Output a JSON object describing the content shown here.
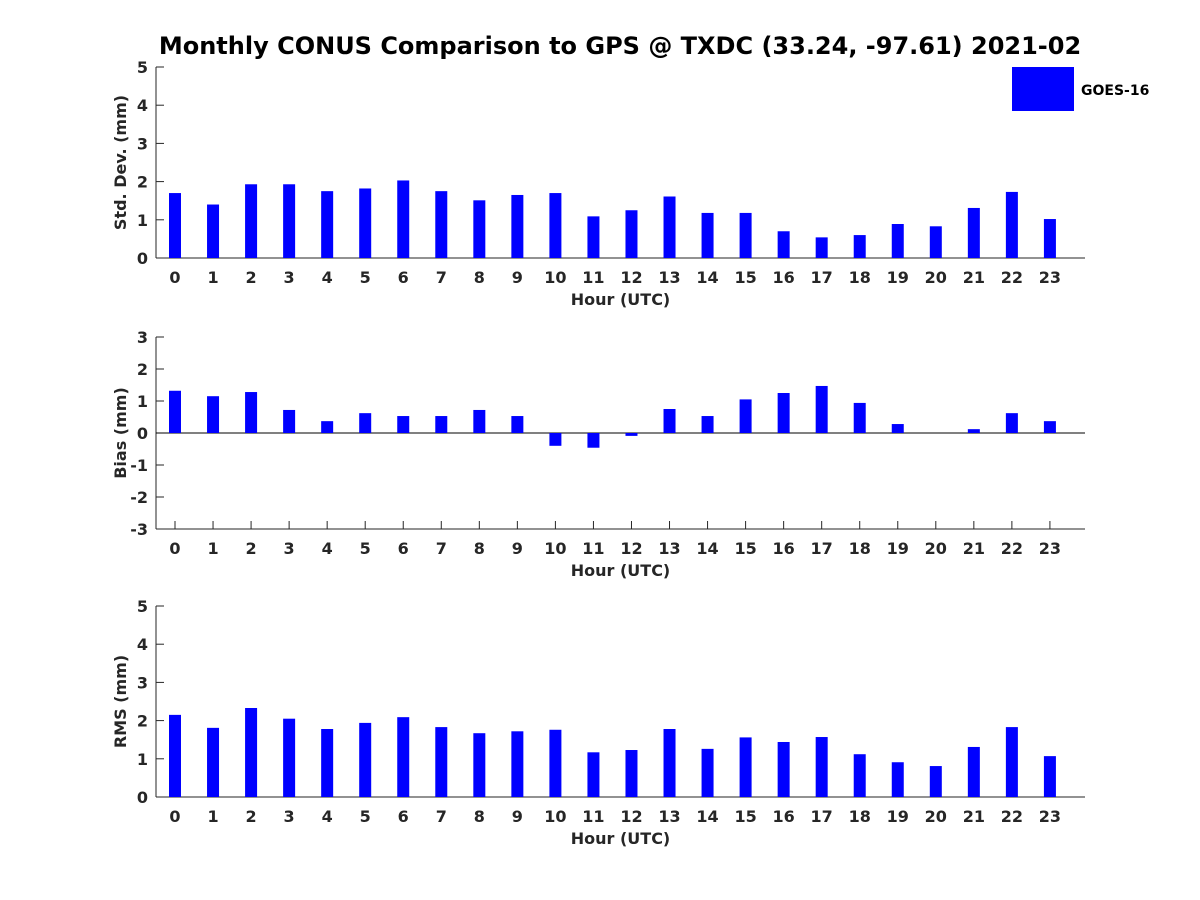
{
  "colors": {
    "bar": "#0000ff",
    "axis": "#262626"
  },
  "chart_data": {
    "title": "Monthly CONUS Comparison to GPS @ TXDC (33.24, -97.61) 2021-02",
    "legend": {
      "label": "GOES-16",
      "placement": "top-right"
    },
    "panels": [
      {
        "type": "bar",
        "ylabel": "Std. Dev. (mm)",
        "xlabel": "Hour (UTC)",
        "ylim": [
          0,
          5
        ],
        "yticks": [
          0,
          1,
          2,
          3,
          4,
          5
        ],
        "x": [
          0,
          1,
          2,
          3,
          4,
          5,
          6,
          7,
          8,
          9,
          10,
          11,
          12,
          13,
          14,
          15,
          16,
          17,
          18,
          19,
          20,
          21,
          22,
          23
        ],
        "series": [
          {
            "name": "GOES-16",
            "values": [
              1.7,
              1.4,
              1.93,
              1.93,
              1.75,
              1.82,
              2.03,
              1.75,
              1.51,
              1.65,
              1.7,
              1.09,
              1.25,
              1.61,
              1.18,
              1.18,
              0.7,
              0.54,
              0.6,
              0.89,
              0.83,
              1.31,
              1.73,
              1.02
            ]
          }
        ]
      },
      {
        "type": "bar",
        "ylabel": "Bias (mm)",
        "xlabel": "Hour (UTC)",
        "ylim": [
          -3,
          3
        ],
        "yticks": [
          -3,
          -2,
          -1,
          0,
          1,
          2,
          3
        ],
        "x": [
          0,
          1,
          2,
          3,
          4,
          5,
          6,
          7,
          8,
          9,
          10,
          11,
          12,
          13,
          14,
          15,
          16,
          17,
          18,
          19,
          20,
          21,
          22,
          23
        ],
        "series": [
          {
            "name": "GOES-16",
            "values": [
              1.32,
              1.15,
              1.28,
              0.72,
              0.37,
              0.62,
              0.53,
              0.53,
              0.72,
              0.53,
              -0.4,
              -0.46,
              -0.09,
              0.75,
              0.53,
              1.05,
              1.25,
              1.47,
              0.94,
              0.28,
              0.0,
              0.12,
              0.62,
              0.37
            ]
          }
        ]
      },
      {
        "type": "bar",
        "ylabel": "RMS (mm)",
        "xlabel": "Hour (UTC)",
        "ylim": [
          0,
          5
        ],
        "yticks": [
          0,
          1,
          2,
          3,
          4,
          5
        ],
        "x": [
          0,
          1,
          2,
          3,
          4,
          5,
          6,
          7,
          8,
          9,
          10,
          11,
          12,
          13,
          14,
          15,
          16,
          17,
          18,
          19,
          20,
          21,
          22,
          23
        ],
        "series": [
          {
            "name": "GOES-16",
            "values": [
              2.15,
              1.81,
              2.33,
              2.05,
              1.78,
              1.94,
              2.09,
              1.83,
              1.67,
              1.72,
              1.76,
              1.17,
              1.23,
              1.78,
              1.26,
              1.56,
              1.44,
              1.57,
              1.12,
              0.91,
              0.81,
              1.31,
              1.83,
              1.07
            ]
          }
        ]
      }
    ]
  }
}
